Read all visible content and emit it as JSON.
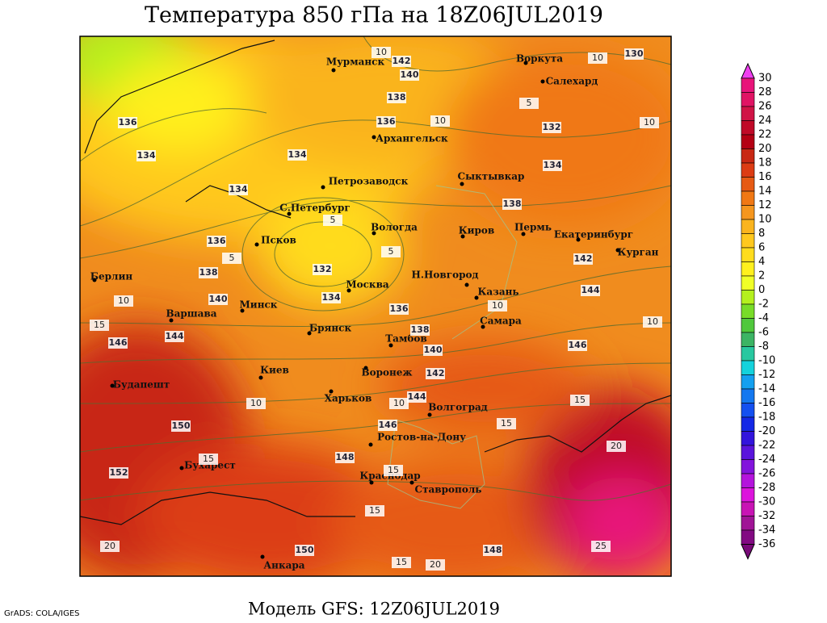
{
  "header": {
    "title": "Температура 850 гПа на 18Z06JUL2019"
  },
  "footer": {
    "credit": "GrADS: COLA/IGES",
    "model": "Модель GFS: 12Z06JUL2019"
  },
  "colorbar": {
    "levels": [
      30,
      28,
      26,
      24,
      22,
      20,
      18,
      16,
      14,
      12,
      10,
      8,
      6,
      4,
      2,
      0,
      -2,
      -4,
      -6,
      -8,
      -10,
      -12,
      -14,
      -16,
      -18,
      -20,
      -22,
      -24,
      -26,
      -28,
      -30,
      -32,
      -34,
      -36
    ],
    "colors": [
      "#f040f0",
      "#e8147a",
      "#e01464",
      "#d01446",
      "#c00a28",
      "#b40014",
      "#c82814",
      "#dc3c14",
      "#e65a14",
      "#f07814",
      "#f5961e",
      "#fab41e",
      "#ffc81e",
      "#ffdc1e",
      "#fff01e",
      "#f0ff28",
      "#b4f01e",
      "#78dc28",
      "#50c83c",
      "#3cb464",
      "#28c8a0",
      "#14d2dc",
      "#14a0f0",
      "#1478f0",
      "#1450f0",
      "#1428e6",
      "#3214dc",
      "#5a14dc",
      "#8214dc",
      "#b414dc",
      "#dc14dc",
      "#c814b4",
      "#a01496",
      "#820a82",
      "#780a78"
    ]
  },
  "cities": [
    "Мурманск",
    "Воркута",
    "Салехард",
    "Архангельск",
    "Сыктывкар",
    "Петрозаводск",
    "С.Петербург",
    "Вологда",
    "Киров",
    "Пермь",
    "Екатеринбург",
    "Курган",
    "Псков",
    "Берлин",
    "Н.Новгород",
    "Москва",
    "Казань",
    "Минск",
    "Варшава",
    "Брянск",
    "Самара",
    "Тамбов",
    "Киев",
    "Воронеж",
    "Будапешт",
    "Харьков",
    "Волгоград",
    "Ростов-на-Дону",
    "Бухарест",
    "Краснодар",
    "Ставрополь",
    "Анкара"
  ],
  "height_labels": [
    142,
    140,
    138,
    136,
    136,
    134,
    134,
    134,
    132,
    134,
    138,
    142,
    144,
    146,
    136,
    138,
    140,
    132,
    134,
    136,
    138,
    140,
    142,
    144,
    146,
    148,
    144,
    146,
    150,
    152,
    150,
    148,
    130
  ],
  "temperature_labels": [
    10,
    10,
    10,
    10,
    5,
    5,
    5,
    5,
    10,
    10,
    10,
    15,
    10,
    10,
    15,
    15,
    20,
    15,
    15,
    15,
    20,
    25,
    15,
    20
  ]
}
